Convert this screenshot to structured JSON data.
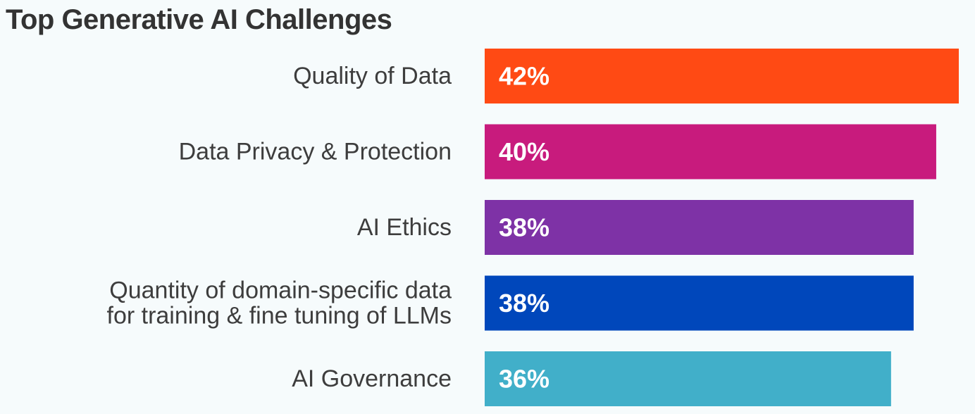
{
  "chart_data": {
    "type": "bar",
    "orientation": "horizontal",
    "title": "Top Generative AI Challenges",
    "categories": [
      [
        "Quality of Data"
      ],
      [
        "Data Privacy & Protection"
      ],
      [
        "AI Ethics"
      ],
      [
        "Quantity of domain-specific data",
        "for training & fine tuning of LLMs"
      ],
      [
        "AI Governance"
      ]
    ],
    "values": [
      42,
      40,
      38,
      38,
      36
    ],
    "value_labels": [
      "42%",
      "40%",
      "38%",
      "38%",
      "36%"
    ],
    "colors": [
      "#ff4a14",
      "#c81b7d",
      "#7e32a6",
      "#0047bb",
      "#41afc9"
    ],
    "xlabel": "",
    "ylabel": "",
    "grid": false,
    "legend": "none"
  }
}
